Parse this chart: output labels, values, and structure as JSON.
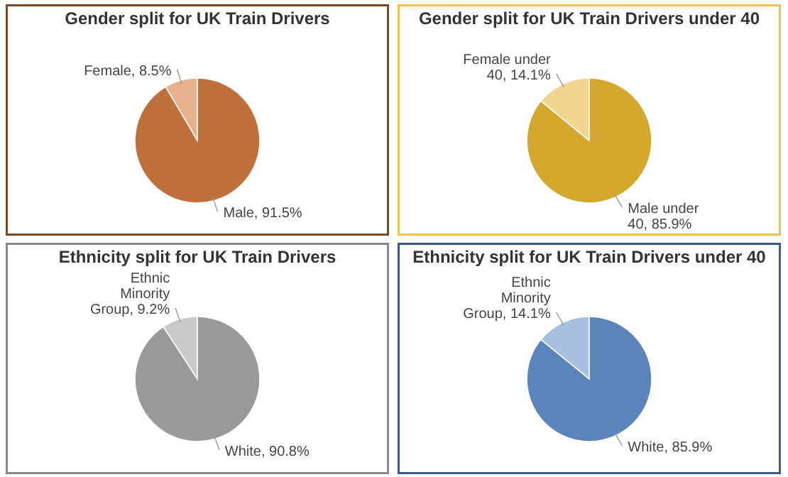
{
  "chart_data": [
    {
      "type": "pie",
      "title": "Gender split for UK Train Drivers",
      "categories": [
        "Female",
        "Male"
      ],
      "values": [
        8.5,
        91.5
      ],
      "value_labels": [
        "8.5%",
        "91.5%"
      ],
      "colors": [
        "#e8b08c",
        "#c0703a"
      ]
    },
    {
      "type": "pie",
      "title": "Gender split for UK Train Drivers under 40",
      "categories": [
        "Female under 40",
        "Male under 40"
      ],
      "values": [
        14.1,
        85.9
      ],
      "value_labels": [
        "14.1%",
        "85.9%"
      ],
      "colors": [
        "#f2d590",
        "#d4a82c"
      ]
    },
    {
      "type": "pie",
      "title": "Ethnicity split for UK Train Drivers",
      "categories": [
        "Ethnic Minority Group",
        "White"
      ],
      "values": [
        9.2,
        90.8
      ],
      "value_labels": [
        "9.2%",
        "90.8%"
      ],
      "colors": [
        "#c9c9c9",
        "#999999"
      ]
    },
    {
      "type": "pie",
      "title": "Ethnicity split for UK Train Drivers under 40",
      "categories": [
        "Ethnic Minority Group",
        "White"
      ],
      "values": [
        14.1,
        85.9
      ],
      "value_labels": [
        "14.1%",
        "85.9%"
      ],
      "colors": [
        "#a9bfe0",
        "#5b84bb"
      ]
    }
  ]
}
